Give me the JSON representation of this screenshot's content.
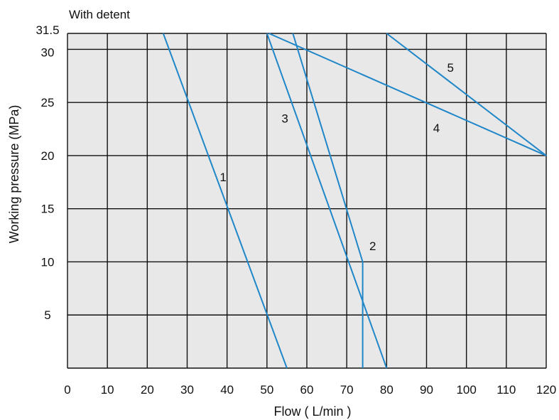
{
  "chart_data": {
    "type": "line",
    "title": "With detent",
    "xlabel": "Flow ( L/min )",
    "ylabel": "Working pressure (MPa)",
    "xlim": [
      0,
      120
    ],
    "ylim": [
      0,
      31.5
    ],
    "grid": true,
    "x_ticks": [
      "0",
      "10",
      "20",
      "30",
      "40",
      "50",
      "60",
      "70",
      "80",
      "90",
      "100",
      "110",
      "120"
    ],
    "x_tick_values": [
      0,
      10,
      20,
      30,
      40,
      50,
      60,
      70,
      80,
      90,
      100,
      110,
      120
    ],
    "y_ticks": [
      "5",
      "10",
      "15",
      "20",
      "25",
      "30",
      "31.5"
    ],
    "y_tick_values": [
      5,
      10,
      15,
      20,
      25,
      30,
      31.5
    ],
    "series": [
      {
        "name": "1",
        "points": [
          [
            24,
            31.5
          ],
          [
            55,
            0
          ]
        ],
        "label_at": [
          39,
          18
        ]
      },
      {
        "name": "2",
        "points": [
          [
            56.5,
            31.5
          ],
          [
            74,
            10
          ],
          [
            74,
            0
          ]
        ],
        "label_at": [
          76.5,
          11.5
        ]
      },
      {
        "name": "3",
        "points": [
          [
            50,
            31.5
          ],
          [
            80,
            0
          ]
        ],
        "label_at": [
          54.5,
          23.5
        ]
      },
      {
        "name": "4",
        "points": [
          [
            50.5,
            31.5
          ],
          [
            120,
            20
          ]
        ],
        "label_at": [
          92.5,
          22.6
        ]
      },
      {
        "name": "5",
        "points": [
          [
            80,
            31.5
          ],
          [
            120,
            20
          ]
        ],
        "label_at": [
          96,
          28.3
        ]
      }
    ],
    "colors": {
      "line": "#1f86c8",
      "plot_bg": "#e8e8e8",
      "grid": "#111111"
    }
  }
}
